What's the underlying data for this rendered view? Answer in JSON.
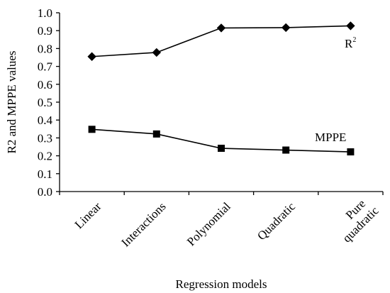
{
  "chart_data": {
    "type": "line",
    "categories": [
      "Linear",
      "Interactions",
      "Polynomial",
      "Quadratic",
      "Pure quadratic"
    ],
    "category_lines": [
      [
        "Linear"
      ],
      [
        "Interactions"
      ],
      [
        "Polynomial"
      ],
      [
        "Quadratic"
      ],
      [
        "Pure",
        "quadratic"
      ]
    ],
    "series": [
      {
        "name": "R",
        "name_superscript": "2",
        "marker": "diamond",
        "values": [
          0.755,
          0.778,
          0.915,
          0.917,
          0.927
        ]
      },
      {
        "name": "MPPE",
        "marker": "square",
        "values": [
          0.348,
          0.322,
          0.242,
          0.232,
          0.222
        ]
      }
    ],
    "title": "",
    "xlabel": "Regression models",
    "ylabel": "R2 and MPPE values",
    "ylim": [
      0.0,
      1.0
    ],
    "yticks": [
      "0.0",
      "0.1",
      "0.2",
      "0.3",
      "0.4",
      "0.5",
      "0.6",
      "0.7",
      "0.8",
      "0.9",
      "1.0"
    ],
    "grid": false,
    "legend": "inline-labels"
  }
}
